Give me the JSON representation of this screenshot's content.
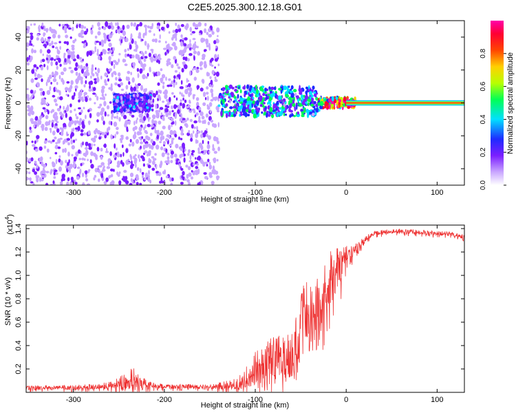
{
  "figure_title": "C2E5.2025.300.12.18.G01",
  "chart_data": [
    {
      "type": "heatmap",
      "title": "C2E5.2025.300.12.18.G01",
      "xlabel": "Height of straight line (km)",
      "ylabel": "Frequency (Hz)",
      "xlim": [
        -352,
        130
      ],
      "ylim": [
        -50,
        50
      ],
      "xticks": [
        -300,
        -200,
        -100,
        0,
        100
      ],
      "xtick_labels": [
        "-300",
        "-200",
        "-100",
        "0",
        "100"
      ],
      "yticks": [
        -40,
        -20,
        0,
        20,
        40
      ],
      "ytick_labels": [
        "-40",
        "-20",
        "0",
        "20",
        "40"
      ],
      "colorbar": {
        "label": "Normalized spectral amplitude",
        "range": [
          0,
          1
        ],
        "ticks": [
          0.0,
          0.2,
          0.4,
          0.6,
          0.8
        ],
        "tick_labels": [
          "0.0",
          "0.2",
          "0.4",
          "0.6",
          "0.8"
        ],
        "colors": [
          "#ffffff",
          "#c9a6ff",
          "#7b1fff",
          "#1f2bff",
          "#00e0ff",
          "#00ff55",
          "#b8ff00",
          "#ffd000",
          "#ff4500",
          "#ff0033",
          "#ff00aa"
        ]
      },
      "regions": [
        {
          "x_range": [
            -352,
            -140
          ],
          "f_range": [
            -50,
            48
          ],
          "level": "low",
          "description_level": 0.15
        },
        {
          "x_range": [
            -255,
            -215
          ],
          "f_range": [
            -5,
            5
          ],
          "level": "medium",
          "description_level": 0.25
        },
        {
          "x_range": [
            -140,
            -30
          ],
          "f_range": [
            -8,
            10
          ],
          "level": "medium",
          "description_level": 0.35
        },
        {
          "x_range": [
            -30,
            10
          ],
          "f_range": [
            -3,
            3
          ],
          "level": "high",
          "description_level": 0.7
        },
        {
          "x_range": [
            0,
            130
          ],
          "f_range": [
            -1,
            1
          ],
          "level": "peak",
          "description_level": 1.0
        }
      ]
    },
    {
      "type": "line",
      "xlabel": "Height of straight line (km)",
      "ylabel": "SNR (10 * v/v)",
      "y_multiplier": "(x10",
      "y_multiplier_exp": "4",
      "y_multiplier_close": ")",
      "xlim": [
        -352,
        130
      ],
      "ylim": [
        0,
        1.43
      ],
      "xticks": [
        -300,
        -200,
        -100,
        0,
        100
      ],
      "xtick_labels": [
        "-300",
        "-200",
        "-100",
        "0",
        "100"
      ],
      "yticks": [
        0.2,
        0.4,
        0.6,
        0.8,
        1.0,
        1.2,
        1.4
      ],
      "ytick_labels": [
        "0.2",
        "0.4",
        "0.6",
        "0.8",
        "1.0",
        "1.2",
        "1.4"
      ],
      "line_color": "#ee3333",
      "series": [
        {
          "name": "SNR",
          "x": [
            -352,
            -300,
            -260,
            -245,
            -235,
            -225,
            -215,
            -200,
            -150,
            -120,
            -105,
            -100,
            -90,
            -80,
            -70,
            -60,
            -50,
            -45,
            -40,
            -30,
            -20,
            -10,
            -5,
            0,
            10,
            20,
            30,
            40,
            60,
            80,
            100,
            120,
            130
          ],
          "y": [
            0.04,
            0.04,
            0.06,
            0.09,
            0.12,
            0.08,
            0.06,
            0.05,
            0.05,
            0.07,
            0.15,
            0.22,
            0.27,
            0.32,
            0.29,
            0.33,
            0.55,
            0.7,
            0.6,
            0.72,
            0.98,
            1.05,
            1.12,
            1.18,
            1.22,
            1.3,
            1.36,
            1.37,
            1.38,
            1.37,
            1.36,
            1.35,
            1.33
          ],
          "spread": [
            0.02,
            0.02,
            0.03,
            0.08,
            0.1,
            0.06,
            0.03,
            0.02,
            0.02,
            0.05,
            0.12,
            0.15,
            0.15,
            0.18,
            0.2,
            0.2,
            0.3,
            0.35,
            0.3,
            0.3,
            0.25,
            0.2,
            0.15,
            0.08,
            0.05,
            0.03,
            0.02,
            0.02,
            0.02,
            0.02,
            0.02,
            0.02,
            0.02
          ]
        }
      ]
    }
  ]
}
